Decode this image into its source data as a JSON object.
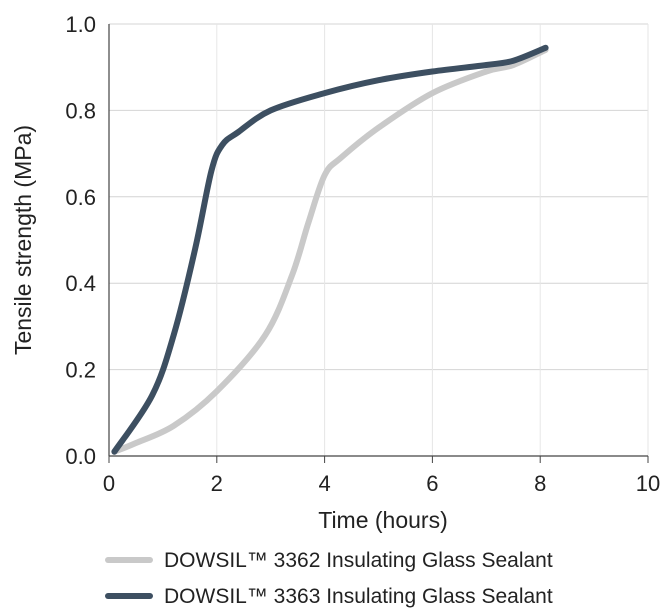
{
  "chart_data": {
    "type": "line",
    "title": "",
    "xlabel": "Time (hours)",
    "ylabel": "Tensile strength (MPa)",
    "xlim": [
      0,
      10
    ],
    "ylim": [
      0,
      1.0
    ],
    "xticks": [
      "0",
      "2",
      "4",
      "6",
      "8",
      "10"
    ],
    "yticks": [
      "0.0",
      "0.2",
      "0.4",
      "0.6",
      "0.8",
      "1.0"
    ],
    "grid": "horizontal",
    "legend_position": "bottom",
    "series": [
      {
        "name": "DOWSIL™ 3362 Insulating Glass Sealant",
        "color": "#c9c9c9",
        "x": [
          0.1,
          0.5,
          1.2,
          2.0,
          2.9,
          3.4,
          3.7,
          4.0,
          4.3,
          5.0,
          6.0,
          7.0,
          7.5,
          8.1
        ],
        "y": [
          0.01,
          0.03,
          0.07,
          0.15,
          0.28,
          0.42,
          0.54,
          0.65,
          0.69,
          0.76,
          0.84,
          0.89,
          0.905,
          0.94
        ]
      },
      {
        "name": "DOWSIL™ 3363 Insulating Glass Sealant",
        "color": "#3d4f61",
        "x": [
          0.1,
          0.8,
          1.2,
          1.6,
          1.9,
          2.1,
          2.4,
          3.0,
          4.0,
          5.0,
          6.0,
          7.0,
          7.5,
          8.1
        ],
        "y": [
          0.01,
          0.14,
          0.28,
          0.48,
          0.66,
          0.72,
          0.75,
          0.8,
          0.84,
          0.87,
          0.89,
          0.905,
          0.915,
          0.945
        ]
      }
    ]
  }
}
